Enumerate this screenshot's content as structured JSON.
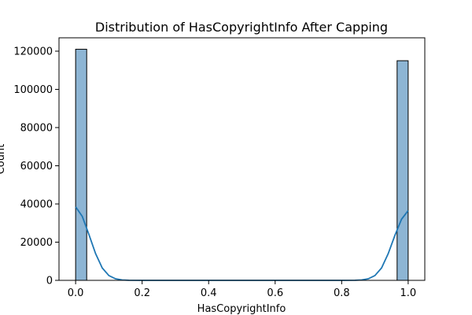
{
  "chart_data": {
    "type": "bar",
    "title": "Distribution of HasCopyrightInfo After Capping",
    "xlabel": "HasCopyrightInfo",
    "ylabel": "Count",
    "xlim": [
      -0.05,
      1.05
    ],
    "ylim": [
      0,
      127000
    ],
    "xticks": [
      0.0,
      0.2,
      0.4,
      0.6,
      0.8,
      1.0
    ],
    "xtick_labels": [
      "0.0",
      "0.2",
      "0.4",
      "0.6",
      "0.8",
      "1.0"
    ],
    "yticks": [
      0,
      20000,
      40000,
      60000,
      80000,
      100000,
      120000
    ],
    "ytick_labels": [
      "0",
      "20000",
      "40000",
      "60000",
      "80000",
      "100000",
      "120000"
    ],
    "bins": [
      {
        "x0": 0.0,
        "x1": 0.0333,
        "count": 121000
      },
      {
        "x0": 0.9667,
        "x1": 1.0,
        "count": 115000
      }
    ],
    "kde": {
      "x": [
        0.0,
        0.02,
        0.04,
        0.06,
        0.08,
        0.1,
        0.12,
        0.14,
        0.16,
        0.2,
        0.4,
        0.6,
        0.8,
        0.84,
        0.86,
        0.88,
        0.9,
        0.92,
        0.94,
        0.96,
        0.98,
        1.0
      ],
      "y": [
        38500,
        33500,
        24000,
        14000,
        6500,
        2500,
        800,
        200,
        50,
        0,
        0,
        0,
        0,
        50,
        200,
        800,
        2500,
        6500,
        14000,
        23500,
        32000,
        36500
      ]
    },
    "colors": {
      "bar_fill": "#8db5d4",
      "bar_edge": "#000000",
      "kde_line": "#1f77b4"
    },
    "grid": false,
    "legend": "none"
  }
}
